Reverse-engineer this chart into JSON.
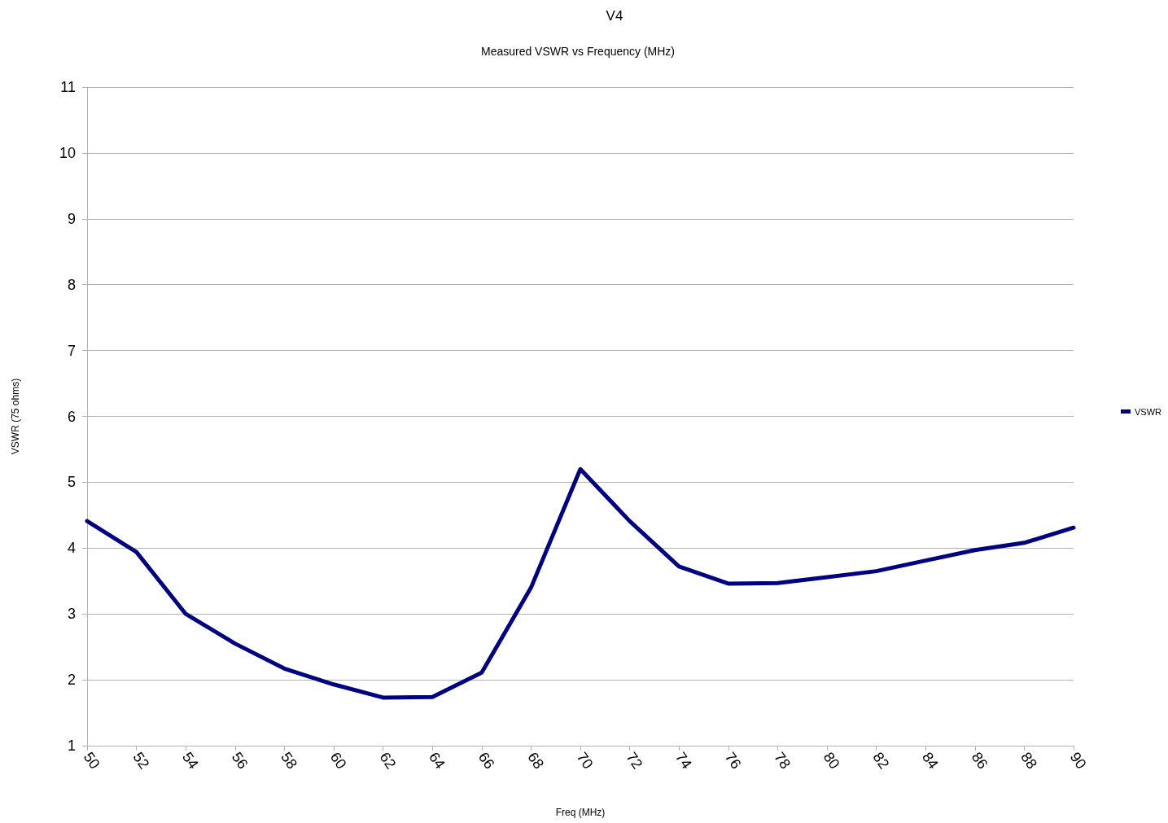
{
  "chart_data": {
    "type": "line",
    "title": "V4",
    "subtitle": "Measured VSWR vs Frequency (MHz)",
    "xlabel": "Freq (MHz)",
    "ylabel": "VSWR (75 ohms)",
    "categories": [
      "50",
      "52",
      "54",
      "56",
      "58",
      "60",
      "62",
      "64",
      "66",
      "68",
      "70",
      "72",
      "74",
      "76",
      "78",
      "80",
      "82",
      "84",
      "86",
      "88",
      "90"
    ],
    "series": [
      {
        "name": "VSWR",
        "color": "#000080",
        "values": [
          4.41,
          3.94,
          3.0,
          2.55,
          2.17,
          1.93,
          1.73,
          1.74,
          2.11,
          3.4,
          5.2,
          4.41,
          3.72,
          3.46,
          3.47,
          3.56,
          3.65,
          3.81,
          3.97,
          4.08,
          4.31
        ]
      }
    ],
    "ylim": [
      1,
      11
    ],
    "yticks": [
      1,
      2,
      3,
      4,
      5,
      6,
      7,
      8,
      9,
      10,
      11
    ],
    "grid": "y",
    "legend": "right",
    "marker": "none",
    "line_style": "solid"
  }
}
